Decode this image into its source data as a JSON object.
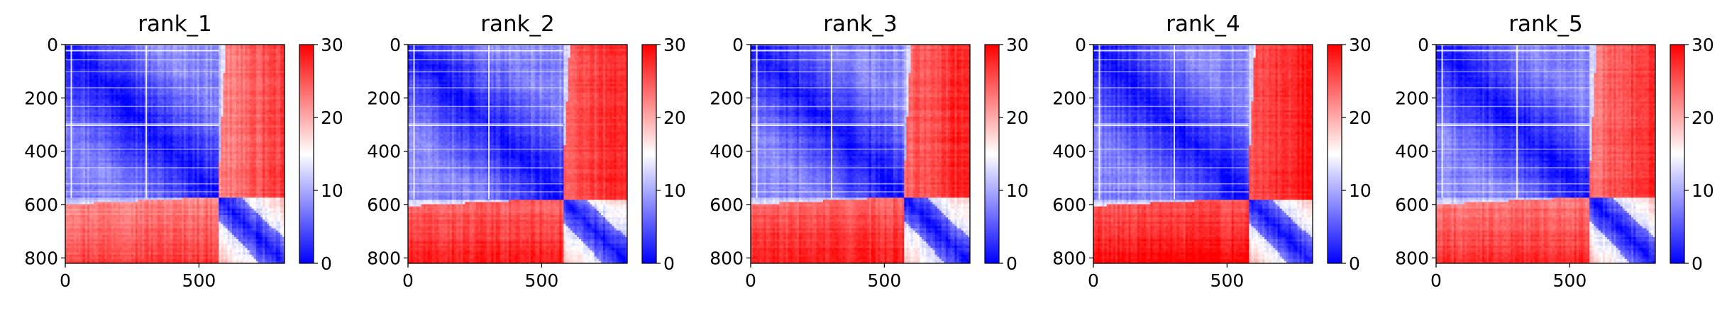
{
  "chart_data": [
    {
      "type": "heatmap",
      "title": "rank_1",
      "x_ticks": [
        0,
        500
      ],
      "y_ticks": [
        0,
        200,
        400,
        600,
        800
      ],
      "xlim": [
        0,
        820
      ],
      "ylim": [
        820,
        0
      ],
      "colorbar": {
        "min": 0,
        "max": 30,
        "ticks": [
          0,
          10,
          20,
          30
        ],
        "colors": [
          "#0000ff",
          "#ffffff",
          "#ff0000"
        ]
      },
      "matrix": {
        "size": 820,
        "core_end": 575,
        "blue_max": 8,
        "red_level": 25,
        "gap_rows": [
          0,
          55,
          100,
          160,
          230,
          295,
          390,
          460,
          520,
          550
        ],
        "white_lines": [
          20,
          300
        ]
      }
    },
    {
      "type": "heatmap",
      "title": "rank_2",
      "x_ticks": [
        0,
        500
      ],
      "y_ticks": [
        0,
        200,
        400,
        600,
        800
      ],
      "xlim": [
        0,
        820
      ],
      "ylim": [
        820,
        0
      ],
      "colorbar": {
        "min": 0,
        "max": 30,
        "ticks": [
          0,
          10,
          20,
          30
        ],
        "colors": [
          "#0000ff",
          "#ffffff",
          "#ff0000"
        ]
      },
      "matrix": {
        "size": 820,
        "core_end": 580,
        "blue_max": 8,
        "red_level": 27,
        "gap_rows": [
          0,
          55,
          100,
          160,
          230,
          295,
          390,
          460,
          520,
          550
        ],
        "white_lines": [
          20,
          300
        ]
      }
    },
    {
      "type": "heatmap",
      "title": "rank_3",
      "x_ticks": [
        0,
        500
      ],
      "y_ticks": [
        0,
        200,
        400,
        600,
        800
      ],
      "xlim": [
        0,
        820
      ],
      "ylim": [
        820,
        0
      ],
      "colorbar": {
        "min": 0,
        "max": 30,
        "ticks": [
          0,
          10,
          20,
          30
        ],
        "colors": [
          "#0000ff",
          "#ffffff",
          "#ff0000"
        ]
      },
      "matrix": {
        "size": 820,
        "core_end": 575,
        "blue_max": 8,
        "red_level": 27,
        "gap_rows": [
          0,
          55,
          100,
          160,
          230,
          295,
          390,
          460,
          520,
          550
        ],
        "white_lines": [
          20,
          300
        ]
      }
    },
    {
      "type": "heatmap",
      "title": "rank_4",
      "x_ticks": [
        0,
        500
      ],
      "y_ticks": [
        0,
        200,
        400,
        600,
        800
      ],
      "xlim": [
        0,
        820
      ],
      "ylim": [
        820,
        0
      ],
      "colorbar": {
        "min": 0,
        "max": 30,
        "ticks": [
          0,
          10,
          20,
          30
        ],
        "colors": [
          "#0000ff",
          "#ffffff",
          "#ff0000"
        ]
      },
      "matrix": {
        "size": 820,
        "core_end": 580,
        "blue_max": 8,
        "red_level": 28,
        "gap_rows": [
          0,
          55,
          100,
          160,
          230,
          295,
          390,
          460,
          520,
          550
        ],
        "white_lines": [
          20,
          300
        ]
      }
    },
    {
      "type": "heatmap",
      "title": "rank_5",
      "x_ticks": [
        0,
        500
      ],
      "y_ticks": [
        0,
        200,
        400,
        600,
        800
      ],
      "xlim": [
        0,
        820
      ],
      "ylim": [
        820,
        0
      ],
      "colorbar": {
        "min": 0,
        "max": 30,
        "ticks": [
          0,
          10,
          20,
          30
        ],
        "colors": [
          "#0000ff",
          "#ffffff",
          "#ff0000"
        ]
      },
      "matrix": {
        "size": 820,
        "core_end": 575,
        "blue_max": 8,
        "red_level": 26,
        "gap_rows": [
          0,
          55,
          100,
          160,
          230,
          295,
          390,
          460,
          520,
          550
        ],
        "white_lines": [
          20,
          300
        ]
      }
    }
  ]
}
